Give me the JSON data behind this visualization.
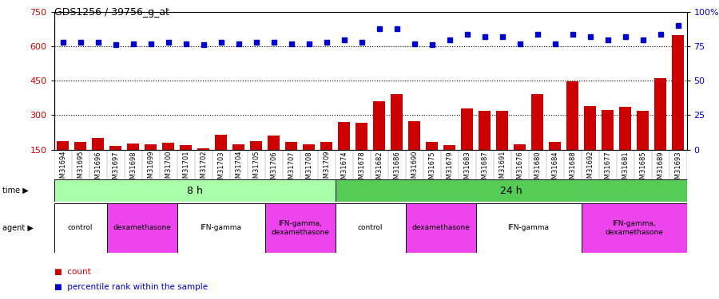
{
  "title": "GDS1256 / 39756_g_at",
  "samples": [
    "GSM31694",
    "GSM31695",
    "GSM31696",
    "GSM31697",
    "GSM31698",
    "GSM31699",
    "GSM31700",
    "GSM31701",
    "GSM31702",
    "GSM31703",
    "GSM31704",
    "GSM31705",
    "GSM31706",
    "GSM31707",
    "GSM31708",
    "GSM31709",
    "GSM31674",
    "GSM31678",
    "GSM31682",
    "GSM31686",
    "GSM31690",
    "GSM31675",
    "GSM31679",
    "GSM31683",
    "GSM31687",
    "GSM31691",
    "GSM31676",
    "GSM31680",
    "GSM31684",
    "GSM31688",
    "GSM31692",
    "GSM31677",
    "GSM31681",
    "GSM31685",
    "GSM31689",
    "GSM31693"
  ],
  "counts": [
    185,
    183,
    200,
    165,
    175,
    173,
    180,
    168,
    155,
    213,
    172,
    185,
    210,
    182,
    172,
    183,
    270,
    265,
    362,
    390,
    275,
    183,
    168,
    330,
    318,
    318,
    172,
    392,
    182,
    447,
    340,
    323,
    335,
    318,
    460,
    650
  ],
  "percentile_ranks": [
    78,
    78,
    78,
    76,
    77,
    77,
    78,
    77,
    76,
    78,
    77,
    78,
    78,
    77,
    77,
    78,
    80,
    78,
    88,
    88,
    77,
    76,
    80,
    84,
    82,
    82,
    77,
    84,
    77,
    84,
    82,
    80,
    82,
    80,
    84,
    90
  ],
  "ylim_left": [
    150,
    750
  ],
  "ylim_right": [
    0,
    100
  ],
  "yticks_left": [
    150,
    300,
    450,
    600,
    750
  ],
  "yticks_right": [
    0,
    25,
    50,
    75,
    100
  ],
  "bar_color": "#cc0000",
  "dot_color": "#0000cc",
  "time_color_8h": "#aaffaa",
  "time_color_24h": "#55cc55",
  "agent_color_white": "#ffffff",
  "agent_color_pink": "#ee44ee",
  "tick_label_color_left": "#cc0000",
  "tick_label_color_right": "#0000cc",
  "xticklabel_bg": "#cccccc",
  "agent_groups": [
    {
      "label": "control",
      "start": 0,
      "end": 3,
      "color": "#ffffff"
    },
    {
      "label": "dexamethasone",
      "start": 3,
      "end": 7,
      "color": "#ee44ee"
    },
    {
      "label": "IFN-gamma",
      "start": 7,
      "end": 12,
      "color": "#ffffff"
    },
    {
      "label": "IFN-gamma,\ndexamethasone",
      "start": 12,
      "end": 16,
      "color": "#ee44ee"
    },
    {
      "label": "control",
      "start": 16,
      "end": 20,
      "color": "#ffffff"
    },
    {
      "label": "dexamethasone",
      "start": 20,
      "end": 24,
      "color": "#ee44ee"
    },
    {
      "label": "IFN-gamma",
      "start": 24,
      "end": 30,
      "color": "#ffffff"
    },
    {
      "label": "IFN-gamma,\ndexamethasone",
      "start": 30,
      "end": 36,
      "color": "#ee44ee"
    }
  ],
  "time_groups": [
    {
      "label": "8 h",
      "start": 0,
      "end": 16,
      "color": "#aaffaa"
    },
    {
      "label": "24 h",
      "start": 16,
      "end": 36,
      "color": "#55cc55"
    }
  ]
}
